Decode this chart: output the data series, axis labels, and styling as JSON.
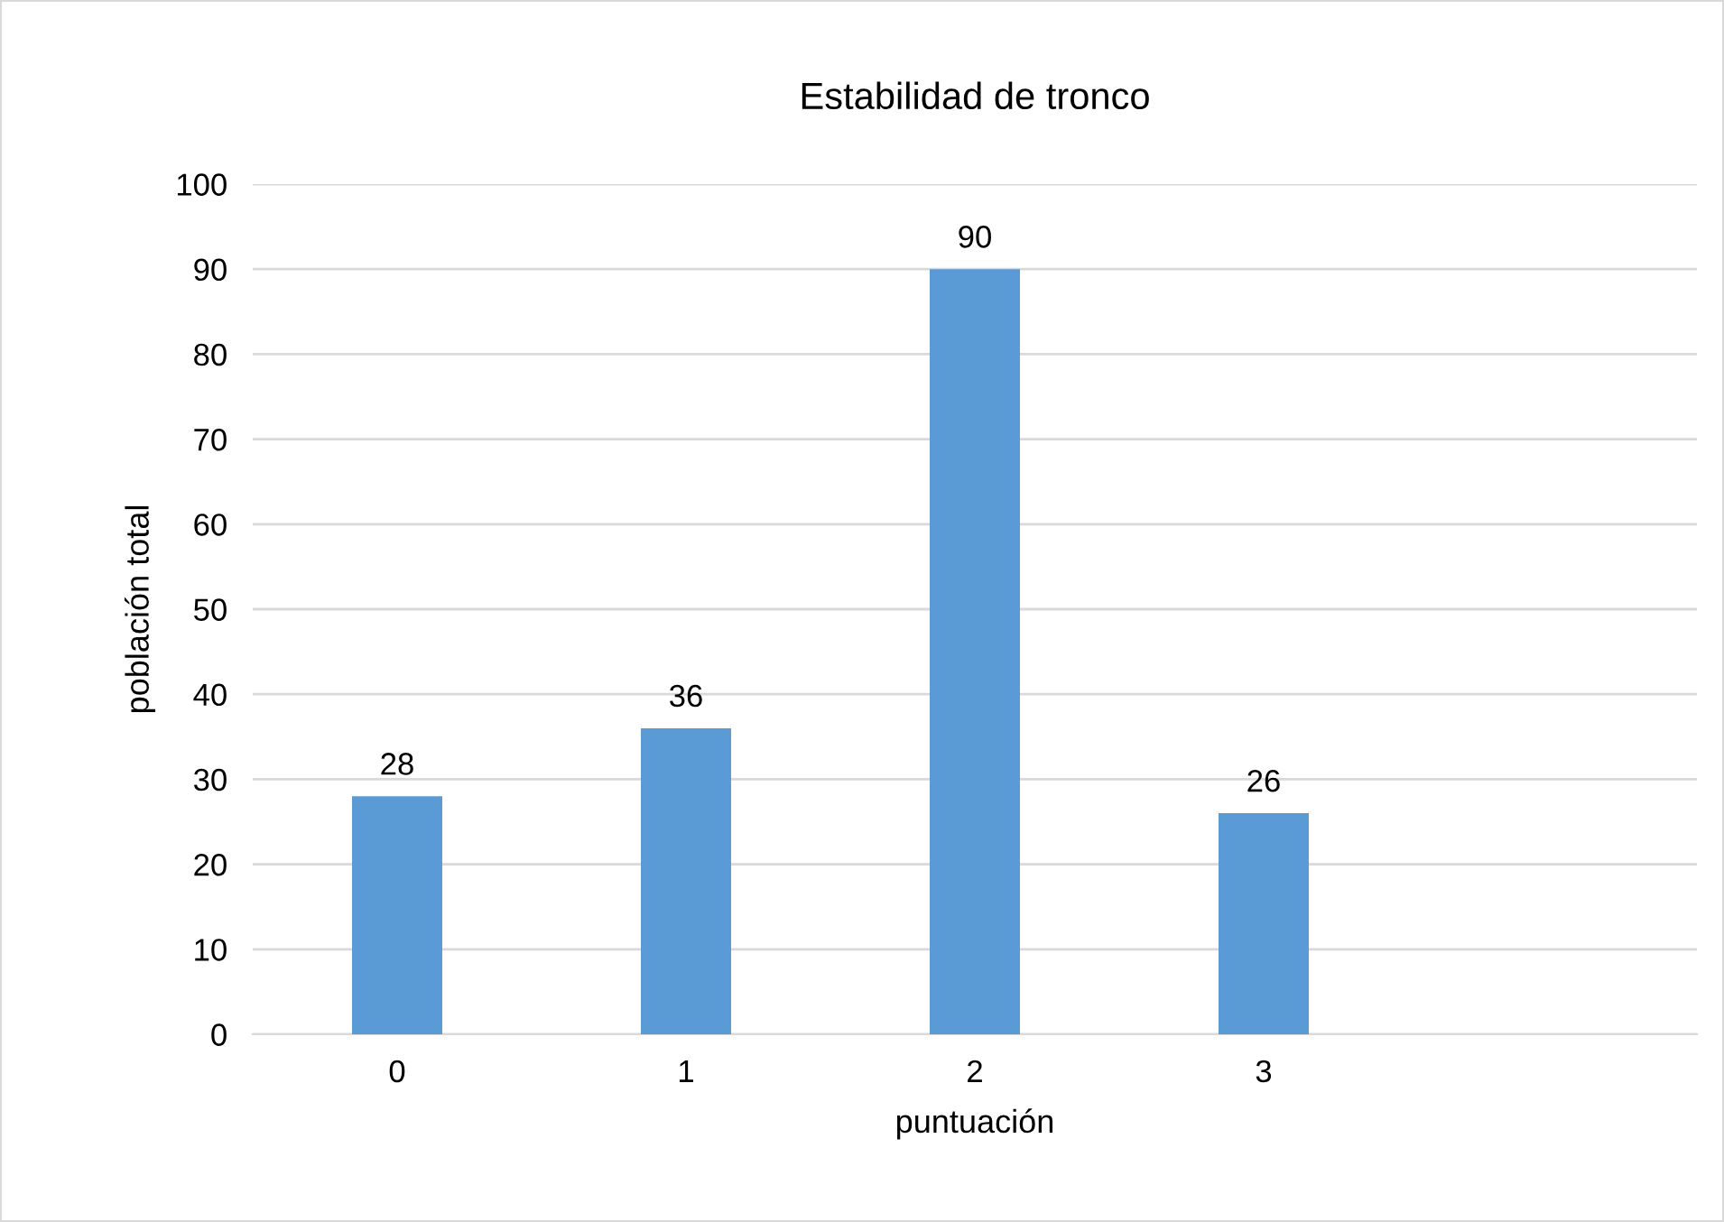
{
  "chart_data": {
    "type": "bar",
    "title": "Estabilidad de tronco",
    "xlabel": "puntuación",
    "ylabel": "población total",
    "categories": [
      "0",
      "1",
      "2",
      "3",
      null
    ],
    "values": [
      28,
      36,
      90,
      26,
      null
    ],
    "color": "#5b9bd5",
    "ylim": [
      0,
      100
    ],
    "yticks": [
      0,
      10,
      20,
      30,
      40,
      50,
      60,
      70,
      80,
      90,
      100
    ],
    "grid": "y",
    "data_labels": true
  }
}
